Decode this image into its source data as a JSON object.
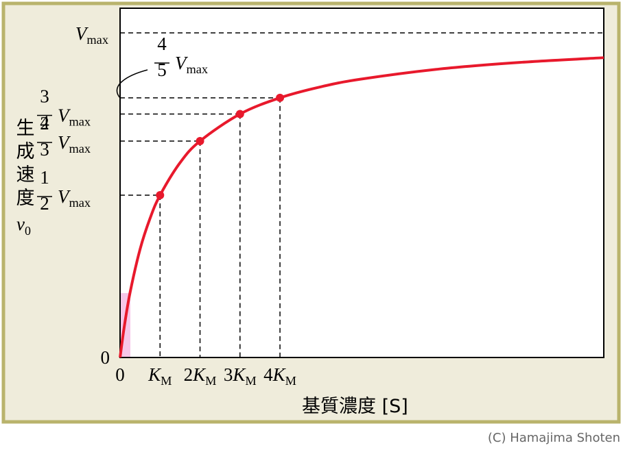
{
  "chart_data": {
    "type": "line",
    "x_label": "基質濃度 [S]",
    "y_label": "生成速度",
    "y_symbol": "v0",
    "credit": "(C) Hamajima Shoten",
    "annotation": {
      "text": "4/5 Vmax",
      "value": 0.8
    },
    "xlim": [
      0,
      12.1
    ],
    "ylim": [
      0,
      1.076
    ],
    "xticks": [
      0,
      {
        "value": 1,
        "label": "KM"
      },
      {
        "value": 2,
        "label": "2KM"
      },
      {
        "value": 3,
        "label": "3KM"
      },
      {
        "value": 4,
        "label": "4KM"
      }
    ],
    "yticks": [
      0,
      {
        "value": 0.5,
        "label": "1/2 Vmax"
      },
      {
        "value": 0.6667,
        "label": "2/3 Vmax"
      },
      {
        "value": 0.75,
        "label": "3/4 Vmax"
      },
      {
        "value": 1,
        "label": "Vmax"
      }
    ],
    "series": [
      {
        "color": "#e8192c",
        "x": [
          0,
          0.1,
          0.25,
          0.5,
          0.75,
          1,
          1.5,
          2,
          3,
          4,
          5,
          6,
          8,
          10,
          12.1
        ],
        "values": [
          0,
          0.0909,
          0.2,
          0.3333,
          0.4286,
          0.5,
          0.6,
          0.6667,
          0.75,
          0.8,
          0.8333,
          0.8571,
          0.8889,
          0.9091,
          0.9237
        ]
      },
      {
        "color": "#e8192c",
        "x": [
          1,
          2,
          3,
          4
        ],
        "values": [
          0.5,
          0.6667,
          0.75,
          0.8
        ]
      }
    ]
  }
}
